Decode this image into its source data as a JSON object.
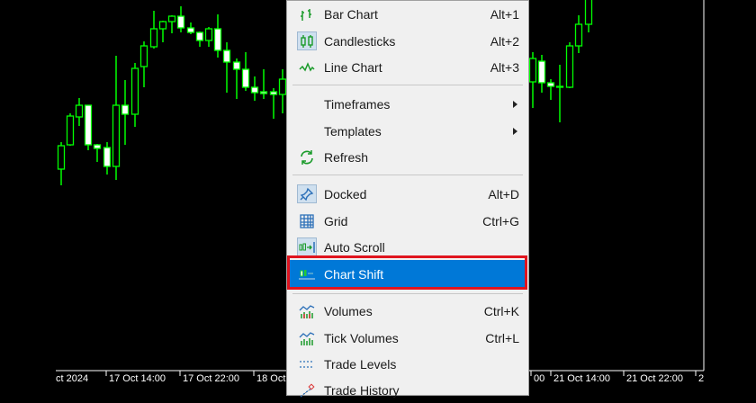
{
  "chart": {
    "bull_color": "#00ff00",
    "bear_fill": "#ffffff",
    "time_axis_labels": [
      "ct 2024",
      "17 Oct 14:00",
      "17 Oct 22:00",
      "18 Oct",
      "00",
      "21 Oct 14:00",
      "21 Oct 22:00",
      "2"
    ]
  },
  "menu": {
    "highlight_color": "#0078d7",
    "annotation_color": "#e0141e",
    "items": [
      {
        "label": "Bar Chart",
        "shortcut": "Alt+1",
        "icon": "bar-chart-icon"
      },
      {
        "label": "Candlesticks",
        "shortcut": "Alt+2",
        "icon": "candlesticks-icon",
        "checked": true
      },
      {
        "label": "Line Chart",
        "shortcut": "Alt+3",
        "icon": "line-chart-icon"
      },
      {
        "label": "Timeframes",
        "submenu": true
      },
      {
        "label": "Templates",
        "submenu": true
      },
      {
        "label": "Refresh",
        "icon": "refresh-icon"
      },
      {
        "label": "Docked",
        "shortcut": "Alt+D",
        "icon": "pin-icon",
        "checked": true
      },
      {
        "label": "Grid",
        "shortcut": "Ctrl+G",
        "icon": "grid-icon"
      },
      {
        "label": "Auto Scroll",
        "icon": "auto-scroll-icon",
        "checked": true
      },
      {
        "label": "Chart Shift",
        "icon": "chart-shift-icon",
        "highlighted": true
      },
      {
        "label": "Volumes",
        "shortcut": "Ctrl+K",
        "icon": "volumes-icon"
      },
      {
        "label": "Tick Volumes",
        "shortcut": "Ctrl+L",
        "icon": "tick-volumes-icon"
      },
      {
        "label": "Trade Levels",
        "icon": "trade-levels-icon"
      },
      {
        "label": "Trade History",
        "icon": "trade-history-icon"
      }
    ]
  }
}
